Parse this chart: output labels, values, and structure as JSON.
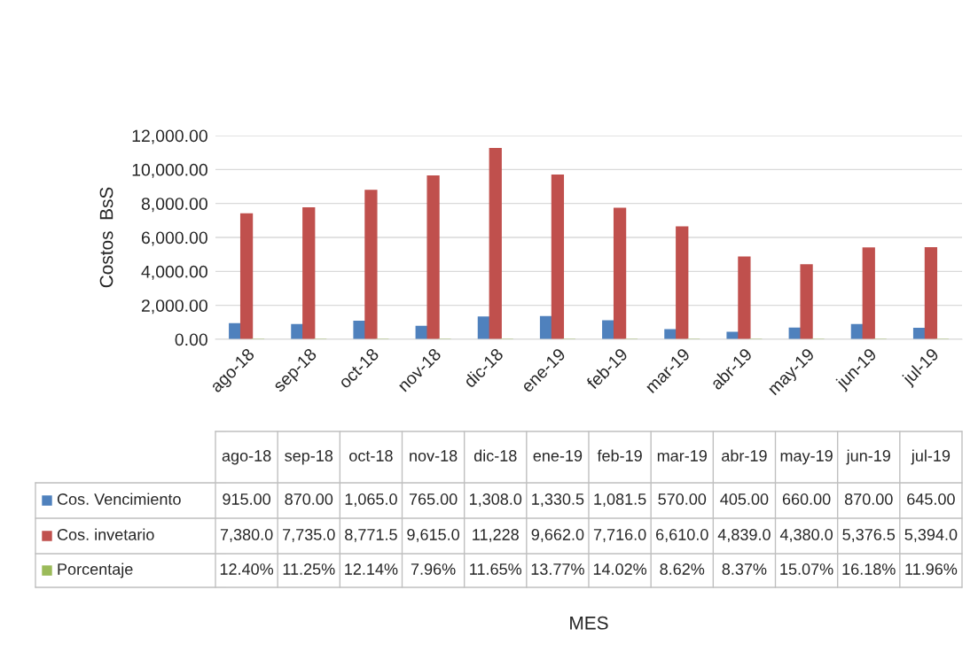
{
  "chart_data": {
    "type": "bar",
    "ylabel": "Costos  BsS",
    "annotations": [
      "MES"
    ],
    "categories": [
      "ago-18",
      "sep-18",
      "oct-18",
      "nov-18",
      "dic-18",
      "ene-19",
      "feb-19",
      "mar-19",
      "abr-19",
      "may-19",
      "jun-19",
      "jul-19"
    ],
    "series": [
      {
        "name": "Cos. Vencimiento",
        "color": "#4f81bd",
        "values": [
          915,
          870,
          1065,
          765,
          1308,
          1330.5,
          1081.5,
          570,
          405,
          660,
          870,
          645
        ],
        "value_labels": [
          "915.00",
          "870.00",
          "1,065.0",
          "765.00",
          "1,308.0",
          "1,330.5",
          "1,081.5",
          "570.00",
          "405.00",
          "660.00",
          "870.00",
          "645.00"
        ]
      },
      {
        "name": "Cos. invetario",
        "color": "#c0504d",
        "values": [
          7380,
          7735,
          8771.5,
          9615,
          11228,
          9662,
          7716,
          6610,
          4839,
          4380,
          5376.5,
          5394
        ],
        "value_labels": [
          "7,380.0",
          "7,735.0",
          "8,771.5",
          "9,615.0",
          "11,228",
          "9,662.0",
          "7,716.0",
          "6,610.0",
          "4,839.0",
          "4,380.0",
          "5,376.5",
          "5,394.0"
        ]
      },
      {
        "name": "Porcentaje",
        "color": "#9bbb59",
        "values": [
          0.124,
          0.1125,
          0.1214,
          0.0796,
          0.1165,
          0.1377,
          0.1402,
          0.0862,
          0.0837,
          0.1507,
          0.1618,
          0.1196
        ],
        "value_labels": [
          "12.40%",
          "11.25%",
          "12.14%",
          "7.96%",
          "11.65%",
          "13.77%",
          "14.02%",
          "8.62%",
          "8.37%",
          "15.07%",
          "16.18%",
          "11.96%"
        ]
      }
    ],
    "ylim": [
      0,
      12000
    ],
    "yticks": [
      {
        "value": 0,
        "label": "0.00"
      },
      {
        "value": 2000,
        "label": "2,000.00"
      },
      {
        "value": 4000,
        "label": "4,000.00"
      },
      {
        "value": 6000,
        "label": "6,000.00"
      },
      {
        "value": 8000,
        "label": "8,000.00"
      },
      {
        "value": 10000,
        "label": "10,000.00"
      },
      {
        "value": 12000,
        "label": "12,000.00"
      }
    ],
    "grid": "y",
    "legend": "bottom left"
  }
}
